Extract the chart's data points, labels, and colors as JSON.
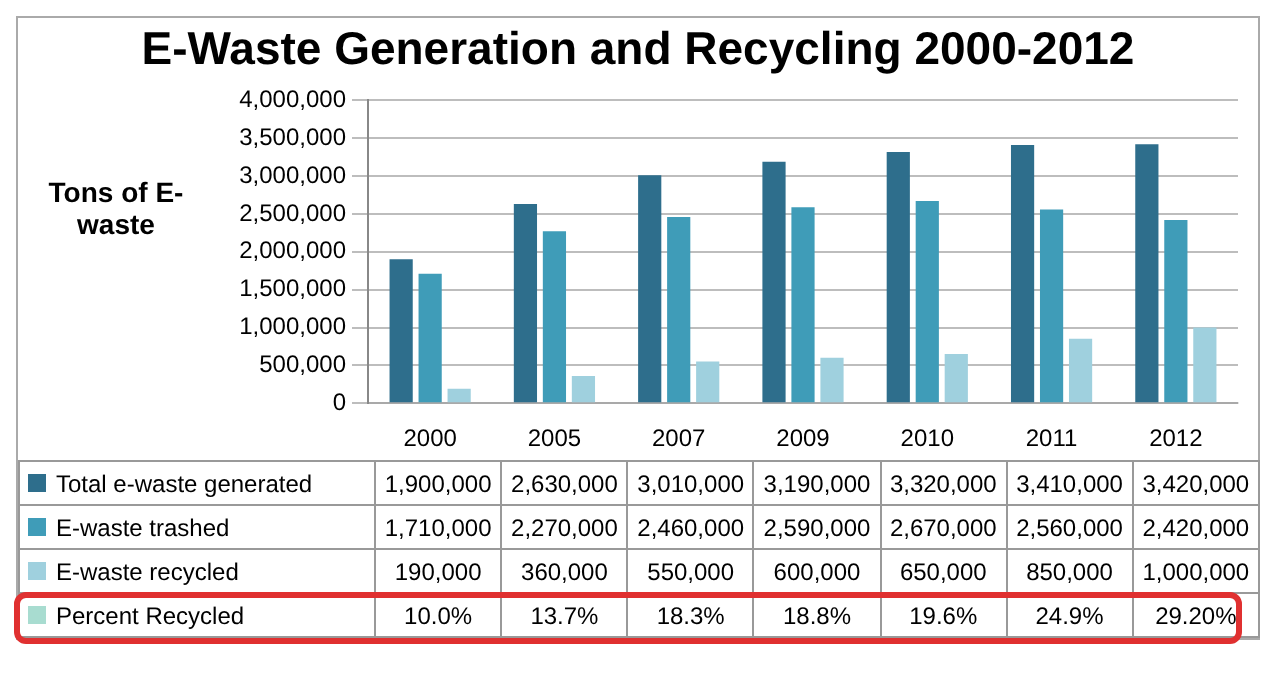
{
  "chart_data": {
    "type": "bar",
    "title": "E-Waste Generation and Recycling 2000-2012",
    "ylabel": "Tons of E-waste",
    "categories": [
      "2000",
      "2005",
      "2007",
      "2009",
      "2010",
      "2011",
      "2012"
    ],
    "series": [
      {
        "name": "Total e-waste generated",
        "color": "#2e6e8c",
        "values": [
          1900000,
          2630000,
          3010000,
          3190000,
          3320000,
          3410000,
          3420000
        ],
        "value_labels": [
          "1,900,000",
          "2,630,000",
          "3,010,000",
          "3,190,000",
          "3,320,000",
          "3,410,000",
          "3,420,000"
        ]
      },
      {
        "name": "E-waste trashed",
        "color": "#3f9cb8",
        "values": [
          1710000,
          2270000,
          2460000,
          2590000,
          2670000,
          2560000,
          2420000
        ],
        "value_labels": [
          "1,710,000",
          "2,270,000",
          "2,460,000",
          "2,590,000",
          "2,670,000",
          "2,560,000",
          "2,420,000"
        ]
      },
      {
        "name": "E-waste recycled",
        "color": "#9fd0de",
        "values": [
          190000,
          360000,
          550000,
          600000,
          650000,
          850000,
          1000000
        ],
        "value_labels": [
          "190,000",
          "360,000",
          "550,000",
          "600,000",
          "650,000",
          "850,000",
          "1,000,000"
        ]
      }
    ],
    "annotations": [
      "Percent Recycled",
      "10.0%",
      "13.7%",
      "18.3%",
      "18.8%",
      "19.6%",
      "24.9%",
      "29.20%"
    ],
    "ylim": [
      0,
      4000000
    ],
    "yticks": [
      {
        "value": 0,
        "label": "0"
      },
      {
        "value": 500000,
        "label": "500,000"
      },
      {
        "value": 1000000,
        "label": "1,000,000"
      },
      {
        "value": 1500000,
        "label": "1,500,000"
      },
      {
        "value": 2000000,
        "label": "2,000,000"
      },
      {
        "value": 2500000,
        "label": "2,500,000"
      },
      {
        "value": 3000000,
        "label": "3,000,000"
      },
      {
        "value": 3500000,
        "label": "3,500,000"
      },
      {
        "value": 4000000,
        "label": "4,000,000"
      }
    ],
    "grid": "y",
    "legend": "bottom"
  }
}
